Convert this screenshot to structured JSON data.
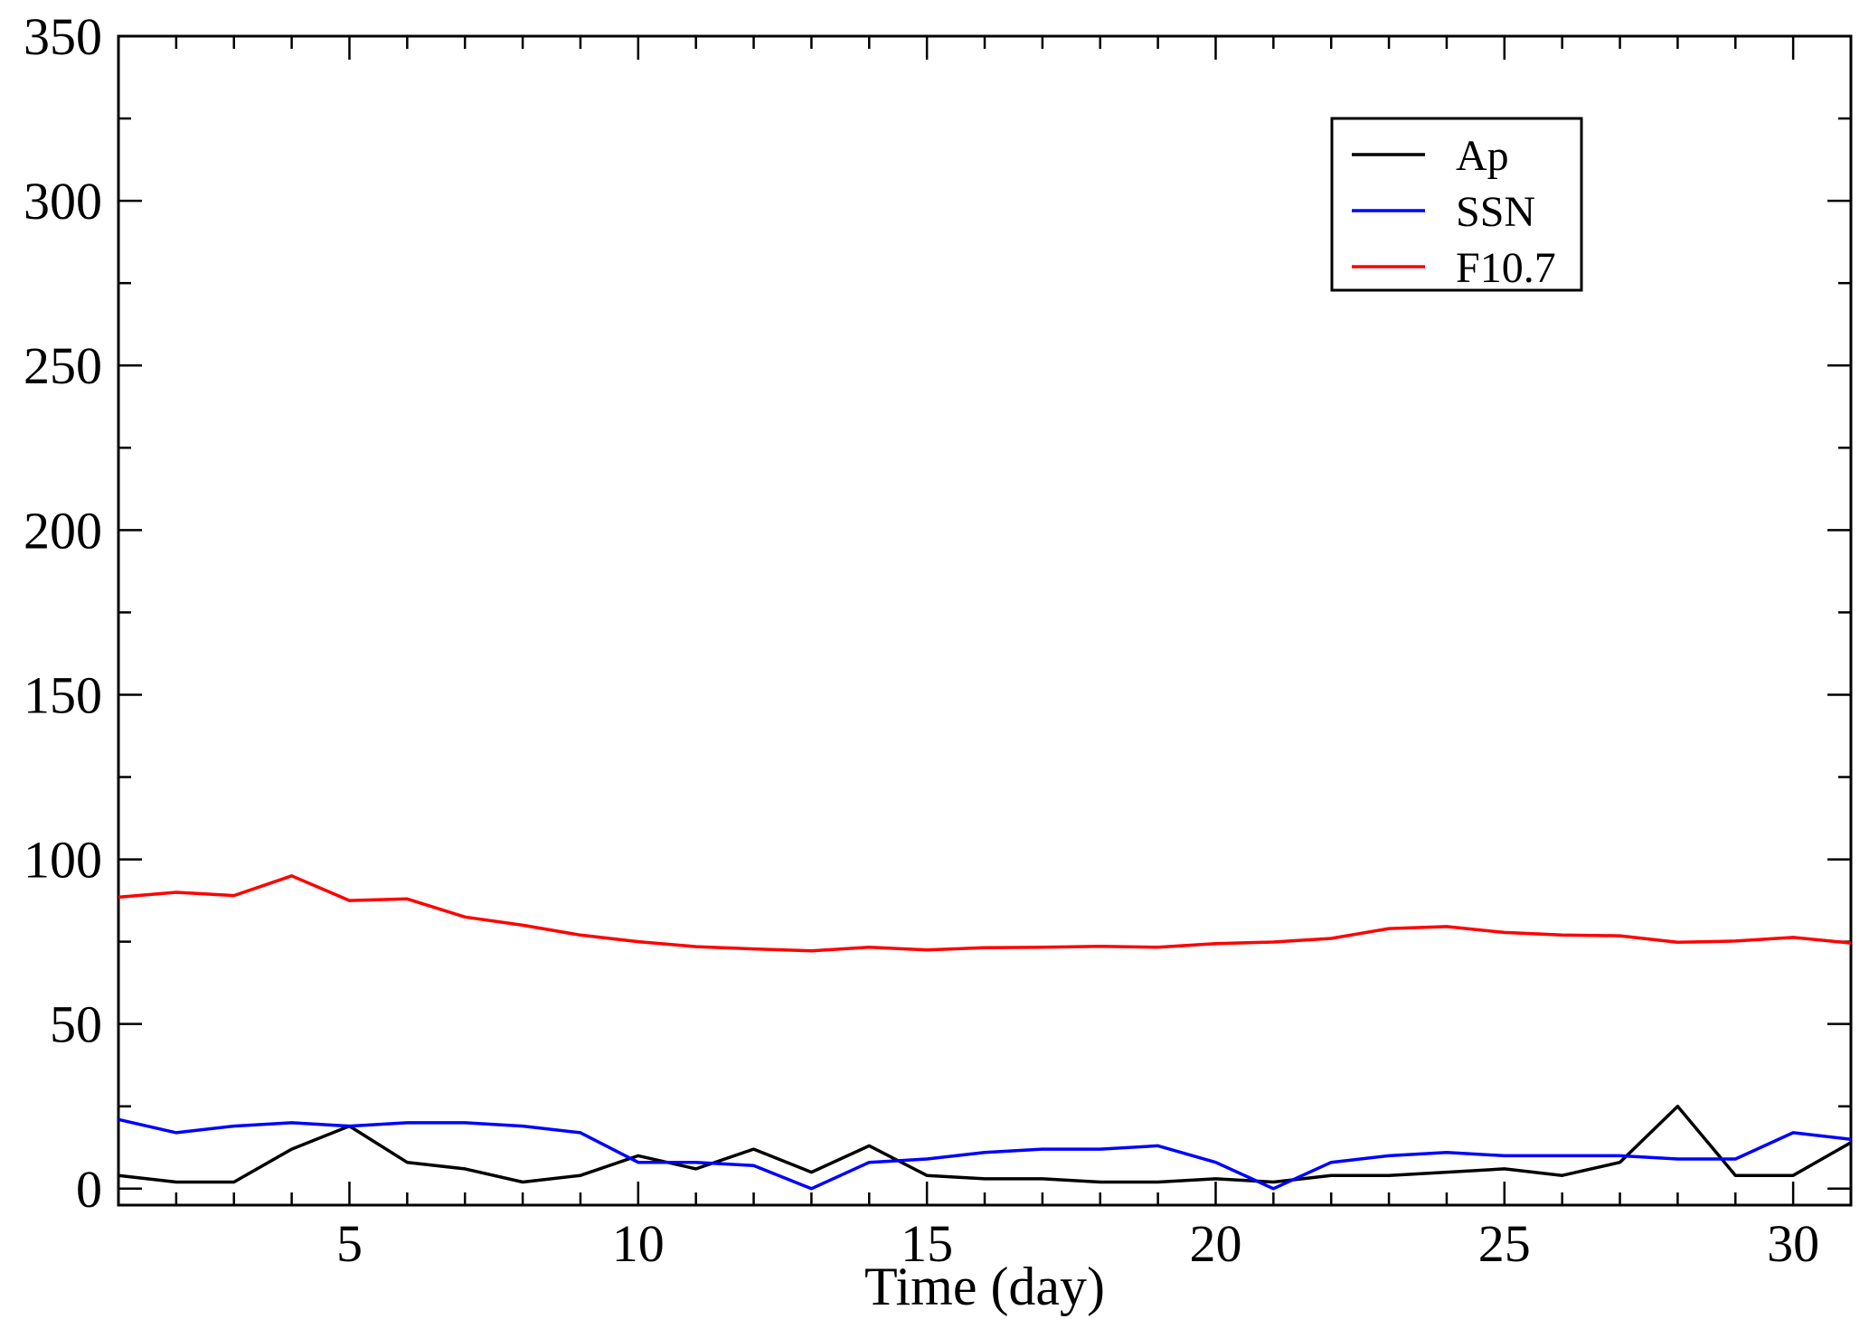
{
  "chart_data": {
    "type": "line",
    "title": "",
    "xlabel": "Time (day)",
    "ylabel": "",
    "xlim": [
      1,
      31
    ],
    "ylim": [
      -5,
      350
    ],
    "x_ticks": [
      5,
      10,
      15,
      20,
      25,
      30
    ],
    "y_ticks": [
      0,
      50,
      100,
      150,
      200,
      250,
      300,
      350
    ],
    "grid": false,
    "legend_position": "top-right",
    "x": [
      1,
      2,
      3,
      4,
      5,
      6,
      7,
      8,
      9,
      10,
      11,
      12,
      13,
      14,
      15,
      16,
      17,
      18,
      19,
      20,
      21,
      22,
      23,
      24,
      25,
      26,
      27,
      28,
      29,
      30,
      31
    ],
    "series": [
      {
        "name": "Ap",
        "color": "#000000",
        "values": [
          4,
          2,
          2,
          12,
          19,
          8,
          6,
          2,
          4,
          10,
          6,
          12,
          5,
          13,
          4,
          3,
          3,
          2,
          2,
          3,
          2,
          4,
          4,
          5,
          6,
          4,
          8,
          25,
          4,
          4,
          14
        ]
      },
      {
        "name": "SSN",
        "color": "#0000ff",
        "values": [
          21,
          17,
          19,
          20,
          19,
          20,
          20,
          19,
          17,
          8,
          8,
          7,
          0,
          8,
          9,
          11,
          12,
          12,
          13,
          8,
          0,
          8,
          10,
          11,
          10,
          10,
          10,
          9,
          9,
          17,
          15
        ]
      },
      {
        "name": "F10.7",
        "color": "#ff0000",
        "values": [
          88.5,
          90,
          89,
          95,
          87.5,
          88,
          82.5,
          80,
          77,
          75,
          73.5,
          72.8,
          72.2,
          73.3,
          72.5,
          73.2,
          73.3,
          73.6,
          73.3,
          74.4,
          74.9,
          76,
          79,
          79.6,
          77.8,
          77,
          76.8,
          74.8,
          75.2,
          76.3,
          74.6
        ]
      }
    ]
  }
}
